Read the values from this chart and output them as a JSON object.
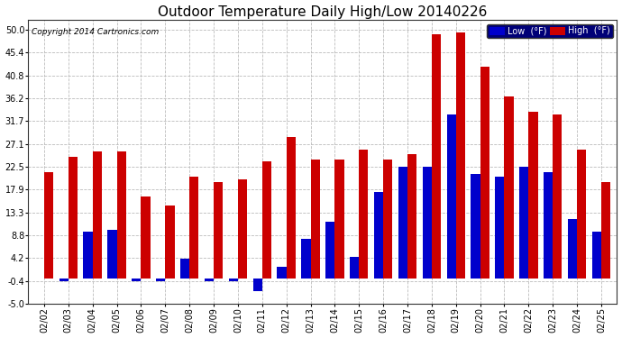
{
  "title": "Outdoor Temperature Daily High/Low 20140226",
  "copyright": "Copyright 2014 Cartronics.com",
  "legend_low": "Low  (°F)",
  "legend_high": "High  (°F)",
  "dates": [
    "02/02",
    "02/03",
    "02/04",
    "02/05",
    "02/06",
    "02/07",
    "02/08",
    "02/09",
    "02/10",
    "02/11",
    "02/12",
    "02/13",
    "02/14",
    "02/15",
    "02/16",
    "02/17",
    "02/18",
    "02/19",
    "02/20",
    "02/21",
    "02/22",
    "02/23",
    "02/24",
    "02/25"
  ],
  "lows": [
    0.0,
    -0.4,
    9.5,
    9.8,
    -0.4,
    -0.4,
    4.0,
    -0.4,
    -0.4,
    -2.5,
    2.5,
    8.0,
    11.5,
    4.5,
    17.5,
    22.5,
    22.5,
    33.0,
    21.0,
    20.5,
    22.5,
    21.5,
    12.0,
    9.5
  ],
  "highs": [
    21.5,
    24.5,
    25.5,
    25.5,
    16.5,
    14.8,
    20.5,
    19.5,
    20.0,
    23.5,
    28.5,
    24.0,
    24.0,
    26.0,
    24.0,
    25.0,
    49.0,
    49.5,
    42.5,
    36.5,
    33.5,
    33.0,
    26.0,
    19.5
  ],
  "low_color": "#0000cc",
  "high_color": "#cc0000",
  "fig_bg_color": "#ffffff",
  "plot_bg_color": "#ffffff",
  "grid_color": "#bbbbbb",
  "legend_bg": "#000077",
  "ylim": [
    -5.0,
    52.0
  ],
  "yticks": [
    -5.0,
    -0.4,
    4.2,
    8.8,
    13.3,
    17.9,
    22.5,
    27.1,
    31.7,
    36.2,
    40.8,
    45.4,
    50.0
  ],
  "bar_width": 0.38,
  "title_fontsize": 11,
  "tick_fontsize": 7,
  "copyright_fontsize": 6.5
}
